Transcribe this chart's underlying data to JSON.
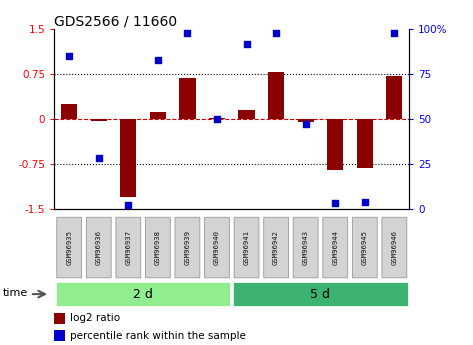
{
  "title": "GDS2566 / 11660",
  "samples": [
    "GSM96935",
    "GSM96936",
    "GSM96937",
    "GSM96938",
    "GSM96939",
    "GSM96940",
    "GSM96941",
    "GSM96942",
    "GSM96943",
    "GSM96944",
    "GSM96945",
    "GSM96946"
  ],
  "log2_ratio": [
    0.25,
    -0.04,
    -1.3,
    0.12,
    0.68,
    0.02,
    0.15,
    0.78,
    -0.05,
    -0.85,
    -0.82,
    0.72
  ],
  "percentile_rank": [
    85,
    28,
    2,
    83,
    98,
    50,
    92,
    98,
    47,
    3,
    4,
    98
  ],
  "group1": {
    "label": "2 d",
    "indices": [
      0,
      1,
      2,
      3,
      4,
      5
    ],
    "color": "#90EE90"
  },
  "group2": {
    "label": "5 d",
    "indices": [
      6,
      7,
      8,
      9,
      10,
      11
    ],
    "color": "#3CB371"
  },
  "bar_color": "#8B0000",
  "dot_color": "#0000CD",
  "ylim": [
    -1.5,
    1.5
  ],
  "yticks_left": [
    -1.5,
    -0.75,
    0.0,
    0.75,
    1.5
  ],
  "yticks_right": [
    0,
    25,
    50,
    75,
    100
  ],
  "dotted_lines": [
    -0.75,
    0.75
  ],
  "zero_line_color": "#CC0000",
  "bg_color": "#ffffff",
  "figsize": [
    4.73,
    3.45
  ],
  "dpi": 100
}
